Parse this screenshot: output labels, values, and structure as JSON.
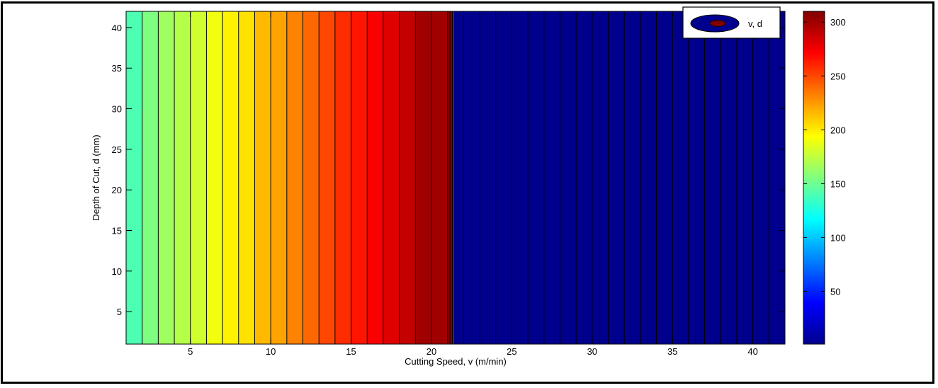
{
  "chart_data": {
    "type": "heatmap",
    "title": "",
    "xlabel": "Cutting Speed, v (m/min)",
    "ylabel": "Depth of Cut, d (mm)",
    "xlim": [
      1,
      42
    ],
    "ylim": [
      1,
      42
    ],
    "xticks": [
      5,
      10,
      15,
      20,
      25,
      30,
      35,
      40
    ],
    "yticks": [
      5,
      10,
      15,
      20,
      25,
      30,
      35,
      40
    ],
    "colorbar": {
      "range": [
        1,
        310
      ],
      "ticks": [
        50,
        100,
        150,
        200,
        250,
        300
      ],
      "colormap": "jet"
    },
    "legend": {
      "entries": [
        "v, d"
      ],
      "placement": "top-right"
    },
    "bands": [
      {
        "x": [
          1,
          2
        ],
        "value": 140
      },
      {
        "x": [
          2,
          3
        ],
        "value": 155
      },
      {
        "x": [
          3,
          4
        ],
        "value": 165
      },
      {
        "x": [
          4,
          5
        ],
        "value": 172
      },
      {
        "x": [
          5,
          6
        ],
        "value": 180
      },
      {
        "x": [
          6,
          7
        ],
        "value": 190
      },
      {
        "x": [
          7,
          8
        ],
        "value": 198
      },
      {
        "x": [
          8,
          9
        ],
        "value": 203
      },
      {
        "x": [
          9,
          10
        ],
        "value": 215
      },
      {
        "x": [
          10,
          11
        ],
        "value": 222
      },
      {
        "x": [
          11,
          12
        ],
        "value": 232
      },
      {
        "x": [
          12,
          13
        ],
        "value": 240
      },
      {
        "x": [
          13,
          14
        ],
        "value": 250
      },
      {
        "x": [
          14,
          15
        ],
        "value": 258
      },
      {
        "x": [
          15,
          16
        ],
        "value": 265
      },
      {
        "x": [
          16,
          17
        ],
        "value": 273
      },
      {
        "x": [
          17,
          18
        ],
        "value": 281
      },
      {
        "x": [
          18,
          19
        ],
        "value": 289
      },
      {
        "x": [
          19,
          21
        ],
        "value": 300
      },
      {
        "x": [
          21,
          21.4
        ],
        "value": 310
      },
      {
        "x": [
          21.4,
          42
        ],
        "value": 5
      }
    ],
    "grid": false
  }
}
